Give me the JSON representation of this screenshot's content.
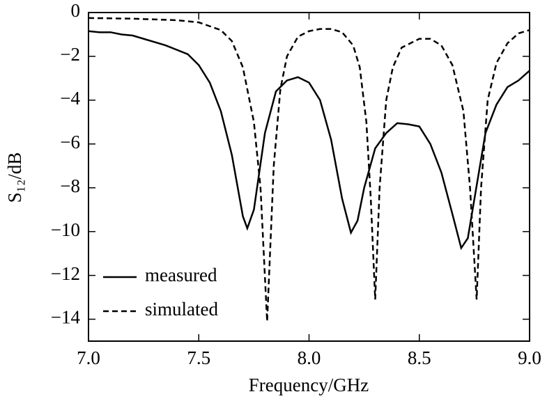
{
  "chart_data": {
    "type": "line",
    "x_label": "Frequency/GHz",
    "y_label": "S₁₂/dB",
    "xlim": [
      7,
      9
    ],
    "ylim": [
      -15,
      0
    ],
    "xticks": [
      {
        "value": 7,
        "label": "7.0"
      },
      7.5,
      {
        "value": 8,
        "label": "8.0"
      },
      8.5,
      {
        "value": 9,
        "label": "9.0"
      }
    ],
    "yticks": [
      0,
      {
        "value": -2,
        "label": "−2"
      },
      {
        "value": -4,
        "label": "−4"
      },
      {
        "value": -6,
        "label": "−6"
      },
      {
        "value": -8,
        "label": "−8"
      },
      {
        "value": -10,
        "label": "−10"
      },
      {
        "value": -12,
        "label": "−12"
      },
      {
        "value": -14,
        "label": "−14"
      }
    ],
    "legend": "lower left",
    "series": [
      {
        "name": "measured",
        "color": "#000000",
        "style": "solid",
        "x": [
          7.0,
          7.05,
          7.1,
          7.15,
          7.2,
          7.25,
          7.3,
          7.35,
          7.4,
          7.45,
          7.5,
          7.55,
          7.6,
          7.65,
          7.7,
          7.72,
          7.75,
          7.8,
          7.85,
          7.9,
          7.95,
          8.0,
          8.05,
          8.1,
          8.15,
          8.19,
          8.22,
          8.25,
          8.3,
          8.35,
          8.4,
          8.45,
          8.5,
          8.55,
          8.6,
          8.65,
          8.69,
          8.72,
          8.75,
          8.8,
          8.85,
          8.9,
          8.95,
          9.0
        ],
        "values": [
          -0.85,
          -0.9,
          -0.9,
          -1.0,
          -1.05,
          -1.2,
          -1.35,
          -1.5,
          -1.7,
          -1.9,
          -2.4,
          -3.2,
          -4.5,
          -6.5,
          -9.3,
          -9.85,
          -9.0,
          -5.5,
          -3.6,
          -3.1,
          -2.95,
          -3.2,
          -4.0,
          -5.8,
          -8.5,
          -10.05,
          -9.5,
          -8.0,
          -6.2,
          -5.5,
          -5.05,
          -5.1,
          -5.2,
          -6.0,
          -7.3,
          -9.2,
          -10.75,
          -10.3,
          -8.5,
          -5.5,
          -4.2,
          -3.4,
          -3.1,
          -2.65
        ]
      },
      {
        "name": "simulated",
        "color": "#000000",
        "style": "dashed",
        "x": [
          7.0,
          7.2,
          7.4,
          7.5,
          7.6,
          7.65,
          7.7,
          7.75,
          7.78,
          7.81,
          7.84,
          7.87,
          7.9,
          7.95,
          8.0,
          8.05,
          8.1,
          8.15,
          8.2,
          8.23,
          8.26,
          8.28,
          8.3,
          8.32,
          8.35,
          8.38,
          8.42,
          8.5,
          8.55,
          8.6,
          8.65,
          8.7,
          8.73,
          8.76,
          8.78,
          8.81,
          8.85,
          8.9,
          8.95,
          9.0
        ],
        "values": [
          -0.25,
          -0.28,
          -0.35,
          -0.45,
          -0.8,
          -1.3,
          -2.5,
          -5.0,
          -8.0,
          -14.1,
          -7.0,
          -3.5,
          -2.0,
          -1.1,
          -0.85,
          -0.75,
          -0.75,
          -0.9,
          -1.5,
          -2.5,
          -5.0,
          -8.5,
          -13.1,
          -8.0,
          -4.0,
          -2.5,
          -1.6,
          -1.2,
          -1.2,
          -1.5,
          -2.4,
          -4.5,
          -8.0,
          -13.1,
          -8.0,
          -4.0,
          -2.3,
          -1.4,
          -0.95,
          -0.8
        ]
      }
    ]
  }
}
